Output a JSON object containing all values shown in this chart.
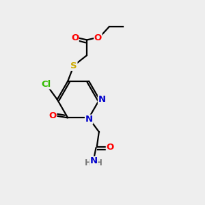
{
  "background_color": "#eeeeee",
  "atom_colors": {
    "O": "#ff0000",
    "N": "#0000cc",
    "S": "#ccaa00",
    "Cl": "#33bb00",
    "C": "#000000",
    "H": "#777777"
  },
  "line_width": 1.6,
  "font_size": 9.5
}
